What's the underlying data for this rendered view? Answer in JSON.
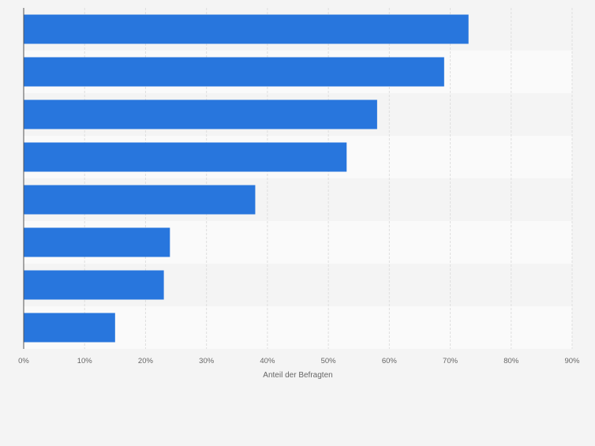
{
  "chart_data": {
    "type": "bar",
    "orientation": "horizontal",
    "categories": [
      "",
      "",
      "",
      "",
      "",
      "",
      "",
      ""
    ],
    "values": [
      73,
      69,
      58,
      53,
      38,
      24,
      23,
      15
    ],
    "xlabel": "Anteil der Befragten",
    "ylabel": "",
    "xlim": [
      0,
      90
    ],
    "xticks": [
      0,
      10,
      20,
      30,
      40,
      50,
      60,
      70,
      80,
      90
    ],
    "tick_labels": [
      "0%",
      "10%",
      "20%",
      "30%",
      "40%",
      "50%",
      "60%",
      "70%",
      "80%",
      "90%"
    ],
    "grid": true,
    "bar_color": "#2876dd",
    "band_colors": [
      "#f4f4f4",
      "#fafafa"
    ]
  }
}
